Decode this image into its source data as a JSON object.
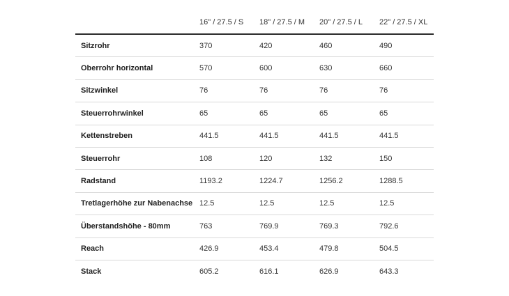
{
  "table": {
    "header": {
      "label": "",
      "sizes": [
        "16\" / 27.5 / S",
        "18\" / 27.5 / M",
        "20\" / 27.5 / L",
        "22\" / 27.5 / XL"
      ]
    },
    "rows": [
      {
        "label": "Sitzrohr",
        "values": [
          "370",
          "420",
          "460",
          "490"
        ]
      },
      {
        "label": "Oberrohr horizontal",
        "values": [
          "570",
          "600",
          "630",
          "660"
        ]
      },
      {
        "label": "Sitzwinkel",
        "values": [
          "76",
          "76",
          "76",
          "76"
        ]
      },
      {
        "label": "Steuerrohrwinkel",
        "values": [
          "65",
          "65",
          "65",
          "65"
        ]
      },
      {
        "label": "Kettenstreben",
        "values": [
          "441.5",
          "441.5",
          "441.5",
          "441.5"
        ]
      },
      {
        "label": "Steuerrohr",
        "values": [
          "108",
          "120",
          "132",
          "150"
        ]
      },
      {
        "label": "Radstand",
        "values": [
          "1193.2",
          "1224.7",
          "1256.2",
          "1288.5"
        ]
      },
      {
        "label": "Tretlagerhöhe zur Nabenachse",
        "values": [
          "12.5",
          "12.5",
          "12.5",
          "12.5"
        ]
      },
      {
        "label": "Überstandshöhe - 80mm",
        "values": [
          "763",
          "769.9",
          "769.3",
          "792.6"
        ]
      },
      {
        "label": "Reach",
        "values": [
          "426.9",
          "453.4",
          "479.8",
          "504.5"
        ]
      },
      {
        "label": "Stack",
        "values": [
          "605.2",
          "616.1",
          "626.9",
          "643.3"
        ]
      }
    ]
  }
}
